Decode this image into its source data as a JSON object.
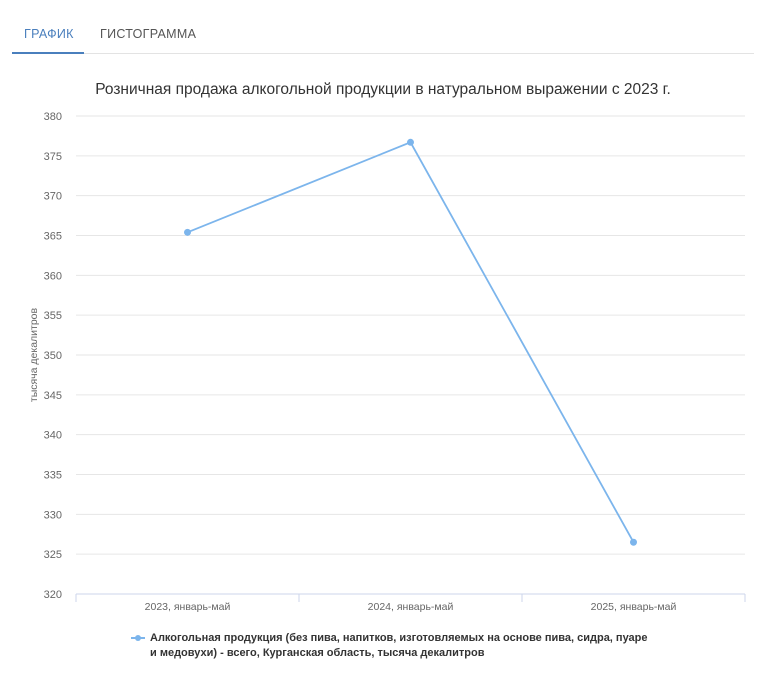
{
  "tabs": [
    {
      "label": "ГРАФИК",
      "active": true
    },
    {
      "label": "ГИСТОГРАММА",
      "active": false
    }
  ],
  "colors": {
    "accent": "#4a7fbd",
    "series": "#7cb5ec",
    "grid": "#e6e6e6",
    "axis": "#ccd6eb"
  },
  "chart_data": {
    "type": "line",
    "title": "Розничная продажа алкогольной продукции в натуральном выражении с 2023 г.",
    "ylabel": "тысяча декалитров",
    "xlabel": "",
    "categories": [
      "2023, январь-май",
      "2024, январь-май",
      "2025, январь-май"
    ],
    "ylim": [
      320,
      380
    ],
    "yticks": [
      320,
      325,
      330,
      335,
      340,
      345,
      350,
      355,
      360,
      365,
      370,
      375,
      380
    ],
    "grid": true,
    "legend_position": "bottom",
    "series": [
      {
        "name": "Алкогольная продукция (без пива, напитков, изготовляемых на основе пива, сидра, пуаре и медовухи) - всего, Курганская область, тысяча декалитров",
        "values": [
          365.4,
          376.7,
          326.5
        ]
      }
    ]
  }
}
